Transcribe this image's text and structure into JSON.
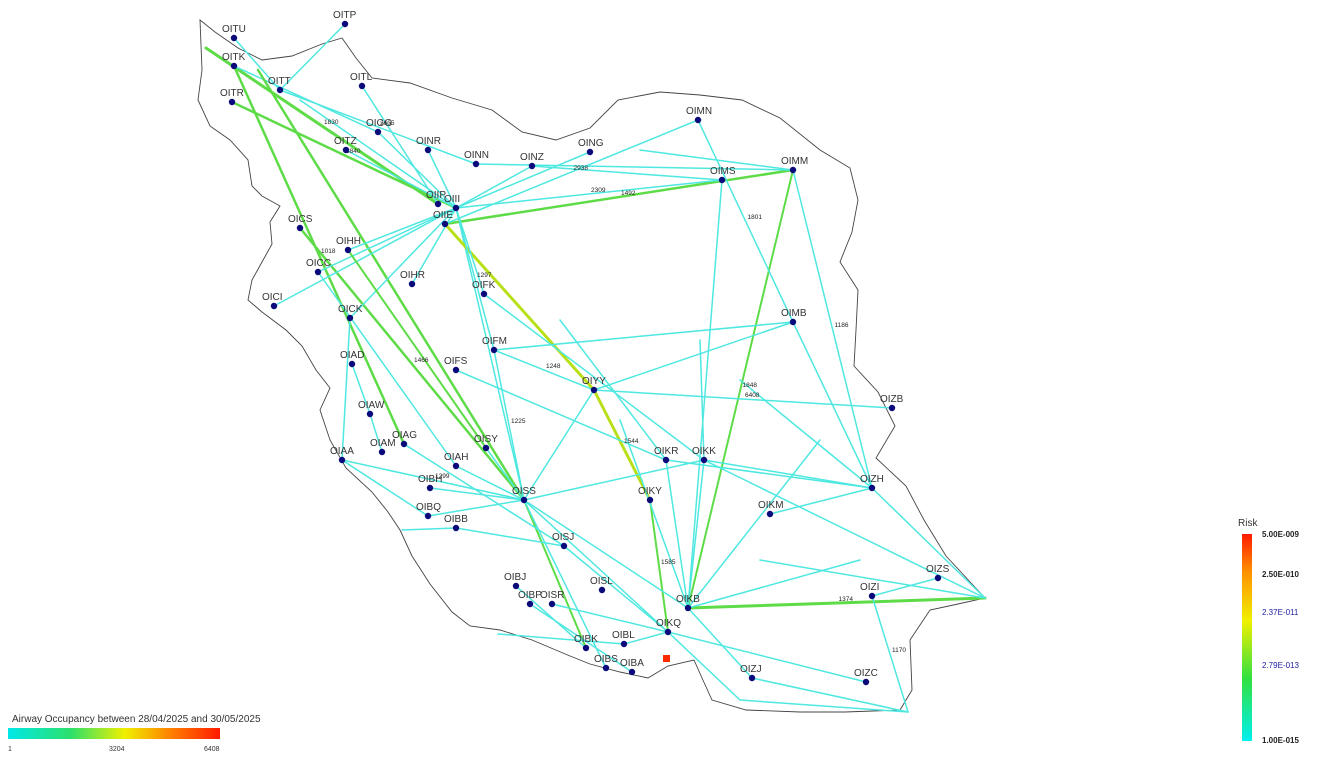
{
  "map": {
    "airports": [
      {
        "code": "OITP"
      },
      {
        "code": "OITU"
      },
      {
        "code": "OITK"
      },
      {
        "code": "OITT"
      },
      {
        "code": "OITL"
      },
      {
        "code": "OITR"
      },
      {
        "code": "OIGG"
      },
      {
        "code": "OINR"
      },
      {
        "code": "OITZ"
      },
      {
        "code": "OINN"
      },
      {
        "code": "OINZ"
      },
      {
        "code": "OING"
      },
      {
        "code": "OIMN"
      },
      {
        "code": "OIMS"
      },
      {
        "code": "OIMM"
      },
      {
        "code": "OIIP"
      },
      {
        "code": "OIII"
      },
      {
        "code": "OIIE"
      },
      {
        "code": "OICS"
      },
      {
        "code": "OIHH"
      },
      {
        "code": "OICC"
      },
      {
        "code": "OIHR"
      },
      {
        "code": "OICI"
      },
      {
        "code": "OIFK"
      },
      {
        "code": "OICK"
      },
      {
        "code": "OIMB"
      },
      {
        "code": "OIAD"
      },
      {
        "code": "OIFM"
      },
      {
        "code": "OIFS"
      },
      {
        "code": "OIYY"
      },
      {
        "code": "OIZB"
      },
      {
        "code": "OIAW"
      },
      {
        "code": "OIAG"
      },
      {
        "code": "OIAM"
      },
      {
        "code": "OISY"
      },
      {
        "code": "OIKR"
      },
      {
        "code": "OIKK"
      },
      {
        "code": "OIAA"
      },
      {
        "code": "OIAH"
      },
      {
        "code": "OIBH"
      },
      {
        "code": "OISS"
      },
      {
        "code": "OIKY"
      },
      {
        "code": "OIZH"
      },
      {
        "code": "OIBQ"
      },
      {
        "code": "OIKM"
      },
      {
        "code": "OIBB"
      },
      {
        "code": "OISJ"
      },
      {
        "code": "OIZS"
      },
      {
        "code": "OIBJ"
      },
      {
        "code": "OISL"
      },
      {
        "code": "OIZI"
      },
      {
        "code": "OIBP"
      },
      {
        "code": "OISR"
      },
      {
        "code": "OIKB"
      },
      {
        "code": "OIKQ"
      },
      {
        "code": "OIBK"
      },
      {
        "code": "OIBL"
      },
      {
        "code": "OIBS"
      },
      {
        "code": "OIBA"
      },
      {
        "code": "OIZJ"
      },
      {
        "code": "OIZC"
      }
    ],
    "edge_labels": [
      "1544",
      "1848",
      "1585",
      "1801",
      "2309",
      "1225",
      "2938",
      "1299",
      "1374",
      "1170",
      "1186",
      "3840",
      "2605",
      "1492",
      "1248",
      "1297",
      "1830",
      "1018",
      "1466",
      "6408"
    ],
    "colors": {
      "border": "#444444",
      "airport": "#0a0a7a",
      "route_low": "#4ee8e0",
      "route_mid": "#5edc48",
      "route_high": "#b8e018",
      "hotspot": "#ff2a00"
    }
  },
  "occupancy_legend": {
    "title": "Airway Occupancy between 28/04/2025 and 30/05/2025",
    "ticks": [
      "1",
      "3204",
      "6408"
    ]
  },
  "risk_legend": {
    "title": "Risk",
    "ticks": [
      "5.00E-009",
      "2.50E-010",
      "2.37E-011",
      "2.79E-013",
      "1.00E-015"
    ]
  }
}
